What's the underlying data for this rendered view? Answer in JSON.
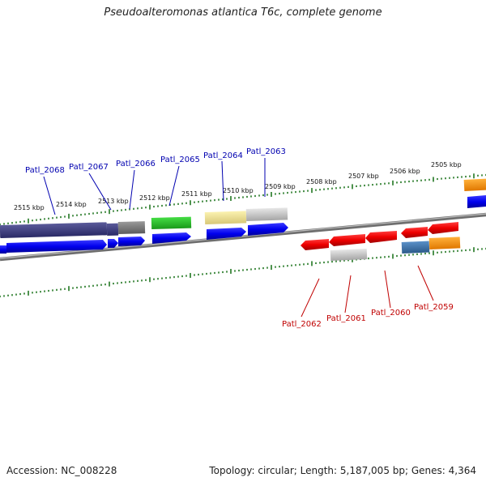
{
  "map": {
    "title": "Pseudoalteromonas atlantica T6c, complete genome",
    "accession": "Accession: NC_008228",
    "summary": "Topology: circular; Length: 5,187,005 bp; Genes: 4,364"
  },
  "ticks": [
    "2515 kbp",
    "2514 kbp",
    "2513 kbp",
    "2512 kbp",
    "2511 kbp",
    "2510 kbp",
    "2509 kbp",
    "2508 kbp",
    "2507 kbp",
    "2506 kbp",
    "2505 kbp"
  ],
  "genes_top": [
    "Patl_2068",
    "Patl_2067",
    "Patl_2066",
    "Patl_2065",
    "Patl_2064",
    "Patl_2063"
  ],
  "genes_bottom": [
    "Patl_2062",
    "Patl_2061",
    "Patl_2060",
    "Patl_2059"
  ],
  "colors": {
    "forward_cds": "#0000ee",
    "reverse_cds": "#ee0000",
    "tick": "#227722",
    "backbone": "#888888",
    "top_label": "#0000b0",
    "bottom_label": "#c00000"
  }
}
